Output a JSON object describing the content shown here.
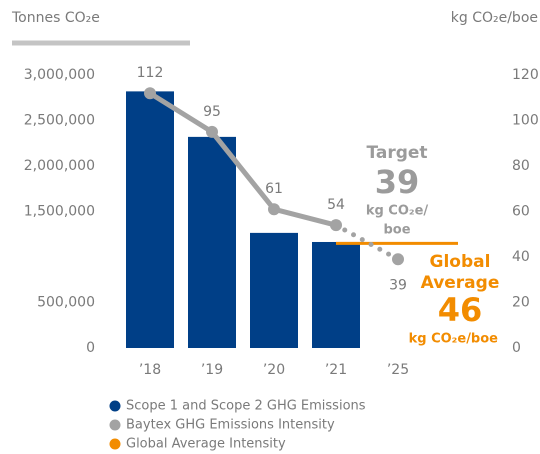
{
  "chart_data": {
    "type": "bar_line",
    "y_label": "Tonnes CO₂e",
    "y2_label": "kg CO₂e/boe",
    "categories": [
      "’18",
      "’19",
      "’20",
      "’21",
      "’25"
    ],
    "projected": [
      "’25"
    ],
    "series": [
      {
        "name": "Scope 1 and Scope 2 GHG Emissions",
        "type": "bar",
        "color": "#003f87",
        "values": [
          2820000,
          2320000,
          1265000,
          1165000,
          null
        ]
      },
      {
        "name": "Baytex GHG Emissions Intensity",
        "type": "line",
        "color": "#a3a3a3",
        "axis": "y2",
        "values": [
          112,
          95,
          61,
          54,
          39
        ]
      },
      {
        "name": "Global Average Intensity",
        "type": "reference",
        "color": "#f28c00",
        "axis": "y2",
        "value": 46
      }
    ],
    "ylim": [
      0,
      3000000
    ],
    "yticks": [
      0,
      {
        "value": 500000,
        "label": "500,000"
      },
      {
        "value": 1500000,
        "label": "1,500,000"
      },
      {
        "value": 2000000,
        "label": "2,000,000"
      },
      {
        "value": 2500000,
        "label": "2,500,000"
      },
      {
        "value": 3000000,
        "label": "3,000,000"
      }
    ],
    "y2lim": [
      0,
      120
    ],
    "y2ticks": [
      0,
      20,
      40,
      60,
      80,
      100,
      120
    ],
    "annotations": {
      "target": {
        "title": "Target",
        "unit": [
          "kg CO₂e/",
          "boe"
        ]
      },
      "global": {
        "title": [
          "Global",
          "Average"
        ],
        "unit": "kg CO₂e/boe"
      }
    }
  }
}
